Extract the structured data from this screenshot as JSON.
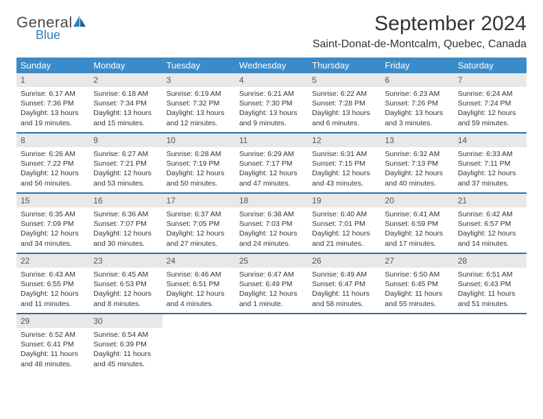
{
  "logo": {
    "general": "General",
    "blue": "Blue"
  },
  "title": "September 2024",
  "location": "Saint-Donat-de-Montcalm, Quebec, Canada",
  "colors": {
    "header_bg": "#3b8bc8",
    "header_text": "#ffffff",
    "week_divider": "#2a6ea6",
    "daynum_bg": "#e8e8e8",
    "daynum_text": "#555555",
    "body_text": "#333333",
    "logo_gray": "#4a4a4a",
    "logo_blue": "#2a7fbf"
  },
  "weekdays": [
    "Sunday",
    "Monday",
    "Tuesday",
    "Wednesday",
    "Thursday",
    "Friday",
    "Saturday"
  ],
  "weeks": [
    [
      {
        "n": "1",
        "sunrise": "6:17 AM",
        "sunset": "7:36 PM",
        "daylight": "13 hours and 19 minutes."
      },
      {
        "n": "2",
        "sunrise": "6:18 AM",
        "sunset": "7:34 PM",
        "daylight": "13 hours and 15 minutes."
      },
      {
        "n": "3",
        "sunrise": "6:19 AM",
        "sunset": "7:32 PM",
        "daylight": "13 hours and 12 minutes."
      },
      {
        "n": "4",
        "sunrise": "6:21 AM",
        "sunset": "7:30 PM",
        "daylight": "13 hours and 9 minutes."
      },
      {
        "n": "5",
        "sunrise": "6:22 AM",
        "sunset": "7:28 PM",
        "daylight": "13 hours and 6 minutes."
      },
      {
        "n": "6",
        "sunrise": "6:23 AM",
        "sunset": "7:26 PM",
        "daylight": "13 hours and 3 minutes."
      },
      {
        "n": "7",
        "sunrise": "6:24 AM",
        "sunset": "7:24 PM",
        "daylight": "12 hours and 59 minutes."
      }
    ],
    [
      {
        "n": "8",
        "sunrise": "6:26 AM",
        "sunset": "7:22 PM",
        "daylight": "12 hours and 56 minutes."
      },
      {
        "n": "9",
        "sunrise": "6:27 AM",
        "sunset": "7:21 PM",
        "daylight": "12 hours and 53 minutes."
      },
      {
        "n": "10",
        "sunrise": "6:28 AM",
        "sunset": "7:19 PM",
        "daylight": "12 hours and 50 minutes."
      },
      {
        "n": "11",
        "sunrise": "6:29 AM",
        "sunset": "7:17 PM",
        "daylight": "12 hours and 47 minutes."
      },
      {
        "n": "12",
        "sunrise": "6:31 AM",
        "sunset": "7:15 PM",
        "daylight": "12 hours and 43 minutes."
      },
      {
        "n": "13",
        "sunrise": "6:32 AM",
        "sunset": "7:13 PM",
        "daylight": "12 hours and 40 minutes."
      },
      {
        "n": "14",
        "sunrise": "6:33 AM",
        "sunset": "7:11 PM",
        "daylight": "12 hours and 37 minutes."
      }
    ],
    [
      {
        "n": "15",
        "sunrise": "6:35 AM",
        "sunset": "7:09 PM",
        "daylight": "12 hours and 34 minutes."
      },
      {
        "n": "16",
        "sunrise": "6:36 AM",
        "sunset": "7:07 PM",
        "daylight": "12 hours and 30 minutes."
      },
      {
        "n": "17",
        "sunrise": "6:37 AM",
        "sunset": "7:05 PM",
        "daylight": "12 hours and 27 minutes."
      },
      {
        "n": "18",
        "sunrise": "6:38 AM",
        "sunset": "7:03 PM",
        "daylight": "12 hours and 24 minutes."
      },
      {
        "n": "19",
        "sunrise": "6:40 AM",
        "sunset": "7:01 PM",
        "daylight": "12 hours and 21 minutes."
      },
      {
        "n": "20",
        "sunrise": "6:41 AM",
        "sunset": "6:59 PM",
        "daylight": "12 hours and 17 minutes."
      },
      {
        "n": "21",
        "sunrise": "6:42 AM",
        "sunset": "6:57 PM",
        "daylight": "12 hours and 14 minutes."
      }
    ],
    [
      {
        "n": "22",
        "sunrise": "6:43 AM",
        "sunset": "6:55 PM",
        "daylight": "12 hours and 11 minutes."
      },
      {
        "n": "23",
        "sunrise": "6:45 AM",
        "sunset": "6:53 PM",
        "daylight": "12 hours and 8 minutes."
      },
      {
        "n": "24",
        "sunrise": "6:46 AM",
        "sunset": "6:51 PM",
        "daylight": "12 hours and 4 minutes."
      },
      {
        "n": "25",
        "sunrise": "6:47 AM",
        "sunset": "6:49 PM",
        "daylight": "12 hours and 1 minute."
      },
      {
        "n": "26",
        "sunrise": "6:49 AM",
        "sunset": "6:47 PM",
        "daylight": "11 hours and 58 minutes."
      },
      {
        "n": "27",
        "sunrise": "6:50 AM",
        "sunset": "6:45 PM",
        "daylight": "11 hours and 55 minutes."
      },
      {
        "n": "28",
        "sunrise": "6:51 AM",
        "sunset": "6:43 PM",
        "daylight": "11 hours and 51 minutes."
      }
    ],
    [
      {
        "n": "29",
        "sunrise": "6:52 AM",
        "sunset": "6:41 PM",
        "daylight": "11 hours and 48 minutes."
      },
      {
        "n": "30",
        "sunrise": "6:54 AM",
        "sunset": "6:39 PM",
        "daylight": "11 hours and 45 minutes."
      },
      null,
      null,
      null,
      null,
      null
    ]
  ],
  "labels": {
    "sunrise": "Sunrise:",
    "sunset": "Sunset:",
    "daylight": "Daylight:"
  }
}
